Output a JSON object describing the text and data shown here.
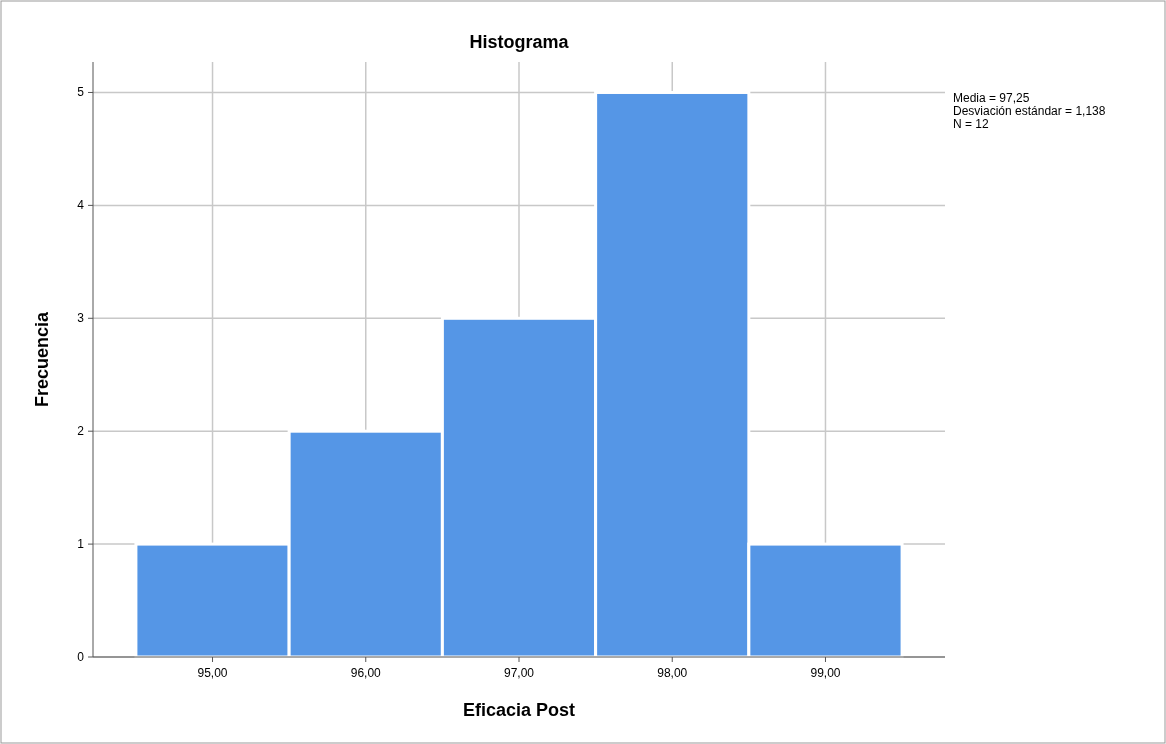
{
  "chart_data": {
    "type": "histogram",
    "title": "Histograma",
    "xlabel": "Eficacia Post",
    "ylabel": "Frecuencia",
    "bins": [
      94.5,
      95.5,
      96.5,
      97.5,
      98.5,
      99.5
    ],
    "values": [
      1,
      2,
      3,
      5,
      1
    ],
    "color": "#5596e6",
    "xlim": [
      94.22,
      99.78
    ],
    "xticks": [
      {
        "value": 95,
        "label": "95,00"
      },
      {
        "value": 96,
        "label": "96,00"
      },
      {
        "value": 97,
        "label": "97,00"
      },
      {
        "value": 98,
        "label": "98,00"
      },
      {
        "value": 99,
        "label": "99,00"
      }
    ],
    "ylim": [
      0,
      5.27
    ],
    "yticks": [
      0,
      1,
      2,
      3,
      4,
      5
    ],
    "grid": true,
    "annotations": [
      "Media = 97,25",
      "Desviación estándar = 1,138",
      "N = 12"
    ]
  }
}
